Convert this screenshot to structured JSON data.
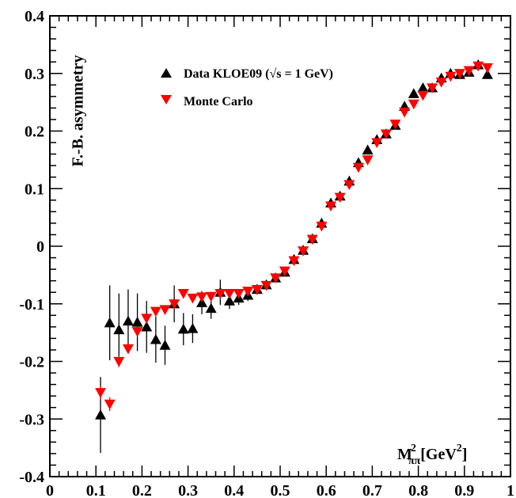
{
  "chart_data": {
    "type": "scatter",
    "xlim": [
      0,
      1
    ],
    "ylim": [
      -0.4,
      0.4
    ],
    "x_ticks": [
      "0",
      "0.1",
      "0.2",
      "0.3",
      "0.4",
      "0.5",
      "0.6",
      "0.7",
      "0.8",
      "0.9",
      "1"
    ],
    "y_ticks": [
      "-0.4",
      "-0.3",
      "-0.2",
      "-0.1",
      "0",
      "0.1",
      "0.2",
      "0.3",
      "0.4"
    ],
    "ylabel": "F.-B. asymmetry",
    "xlabel": {
      "main": "M",
      "sup": "2",
      "sub": "ππ",
      "rest": "[GeV",
      "rest_sup": "2",
      "close": "]"
    },
    "grid": false,
    "legend_position": "top-center",
    "series": [
      {
        "name": "Data KLOE09 (√s = 1 GeV)",
        "marker": "triangle-up",
        "color": "#000000",
        "x": [
          0.11,
          0.13,
          0.15,
          0.17,
          0.19,
          0.21,
          0.23,
          0.25,
          0.27,
          0.29,
          0.31,
          0.33,
          0.35,
          0.37,
          0.39,
          0.41,
          0.43,
          0.45,
          0.47,
          0.49,
          0.51,
          0.53,
          0.55,
          0.57,
          0.59,
          0.61,
          0.63,
          0.65,
          0.67,
          0.69,
          0.71,
          0.73,
          0.75,
          0.77,
          0.79,
          0.81,
          0.83,
          0.85,
          0.87,
          0.89,
          0.91,
          0.93,
          0.95
        ],
        "y": [
          -0.293,
          -0.133,
          -0.145,
          -0.13,
          -0.132,
          -0.14,
          -0.162,
          -0.172,
          -0.1,
          -0.144,
          -0.143,
          -0.098,
          -0.108,
          -0.08,
          -0.095,
          -0.09,
          -0.085,
          -0.075,
          -0.067,
          -0.055,
          -0.045,
          -0.023,
          -0.007,
          0.013,
          0.04,
          0.075,
          0.087,
          0.113,
          0.145,
          0.167,
          0.185,
          0.195,
          0.21,
          0.243,
          0.265,
          0.275,
          0.275,
          0.292,
          0.3,
          0.298,
          0.302,
          0.315,
          0.298
        ],
        "err": [
          0.066,
          0.065,
          0.063,
          0.055,
          0.05,
          0.045,
          0.04,
          0.034,
          0.032,
          0.028,
          0.025,
          0.02,
          0.018,
          0.022,
          0.014,
          0.012,
          0.01,
          0.009,
          0.008,
          0.007,
          0.006,
          0.005,
          0.005,
          0.005,
          0.005,
          0.005,
          0.005,
          0.005,
          0.005,
          0.005,
          0.005,
          0.005,
          0.005,
          0.005,
          0.005,
          0.005,
          0.005,
          0.005,
          0.005,
          0.005,
          0.005,
          0.005,
          0.005
        ]
      },
      {
        "name": "Monte Carlo",
        "marker": "triangle-down",
        "color": "#ff0000",
        "x": [
          0.11,
          0.13,
          0.15,
          0.17,
          0.19,
          0.21,
          0.23,
          0.25,
          0.27,
          0.29,
          0.31,
          0.33,
          0.35,
          0.37,
          0.39,
          0.41,
          0.43,
          0.45,
          0.47,
          0.49,
          0.51,
          0.53,
          0.55,
          0.57,
          0.59,
          0.61,
          0.63,
          0.65,
          0.67,
          0.69,
          0.71,
          0.73,
          0.75,
          0.77,
          0.79,
          0.81,
          0.83,
          0.85,
          0.87,
          0.89,
          0.91,
          0.93,
          0.95
        ],
        "y": [
          -0.254,
          -0.274,
          -0.2,
          -0.178,
          -0.148,
          -0.125,
          -0.113,
          -0.11,
          -0.1,
          -0.082,
          -0.09,
          -0.088,
          -0.087,
          -0.082,
          -0.082,
          -0.082,
          -0.078,
          -0.075,
          -0.068,
          -0.055,
          -0.043,
          -0.025,
          -0.008,
          0.012,
          0.035,
          0.07,
          0.085,
          0.107,
          0.137,
          0.15,
          0.18,
          0.195,
          0.212,
          0.233,
          0.247,
          0.262,
          0.275,
          0.285,
          0.295,
          0.3,
          0.305,
          0.313,
          0.31
        ],
        "err": [
          0.012,
          0.012,
          0.01,
          0.008,
          0,
          0,
          0,
          0,
          0,
          0,
          0,
          0,
          0,
          0,
          0,
          0,
          0,
          0,
          0,
          0,
          0,
          0,
          0,
          0,
          0,
          0,
          0,
          0,
          0,
          0,
          0,
          0,
          0,
          0,
          0,
          0,
          0,
          0,
          0,
          0,
          0,
          0,
          0
        ]
      }
    ]
  }
}
